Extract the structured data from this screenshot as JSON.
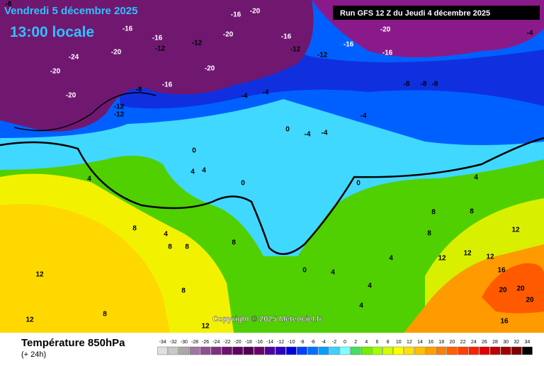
{
  "header": {
    "date": "Vendredi 5 décembre 2025",
    "time": "13:00 locale",
    "run": "Run GFS 12 Z du Jeudi 4 décembre 2025"
  },
  "footer": {
    "copyright": "Copyright © 2025 Meteociel.fr",
    "title": "Température 850hPa",
    "lead": "(+ 24h)"
  },
  "legend": {
    "values": [
      -34,
      -32,
      -30,
      -28,
      -26,
      -24,
      -22,
      -20,
      -18,
      -16,
      -14,
      -12,
      -10,
      -8,
      -6,
      -4,
      -2,
      0,
      2,
      4,
      6,
      8,
      10,
      12,
      14,
      16,
      18,
      20,
      22,
      24,
      26,
      28,
      30,
      32,
      34
    ],
    "colors": [
      "#e0e0e0",
      "#c8c8c8",
      "#a8a8a8",
      "#a078a0",
      "#905090",
      "#803080",
      "#701070",
      "#600060",
      "#500050",
      "#6a006a",
      "#5000a0",
      "#3000c0",
      "#0000e0",
      "#0040ff",
      "#0070ff",
      "#00a0ff",
      "#40d0ff",
      "#80ffff",
      "#40e060",
      "#70f000",
      "#a0ff00",
      "#d0ff00",
      "#ffff00",
      "#ffe000",
      "#ffc000",
      "#ffa000",
      "#ff8000",
      "#ff6000",
      "#ff4000",
      "#ff2000",
      "#e00000",
      "#c00000",
      "#a00000",
      "#800000",
      "#000000"
    ]
  },
  "map_labels": [
    -8,
    -20,
    -16,
    -16,
    -20,
    -16,
    -20,
    -16,
    -12,
    -12,
    -24,
    -20,
    -12,
    -12,
    -16,
    -16,
    -20,
    -20,
    -20,
    -16,
    -8,
    -12,
    -12,
    -4,
    -4,
    -8,
    -8,
    -8,
    -4,
    0,
    -4,
    -4,
    0,
    4,
    4,
    4,
    0,
    0,
    4,
    8,
    8,
    8,
    4,
    8,
    8,
    12,
    8,
    12,
    12,
    12,
    16,
    20,
    20,
    20,
    16,
    12,
    12,
    8,
    4,
    0,
    4,
    4,
    4,
    12,
    8,
    -4,
    8
  ]
}
